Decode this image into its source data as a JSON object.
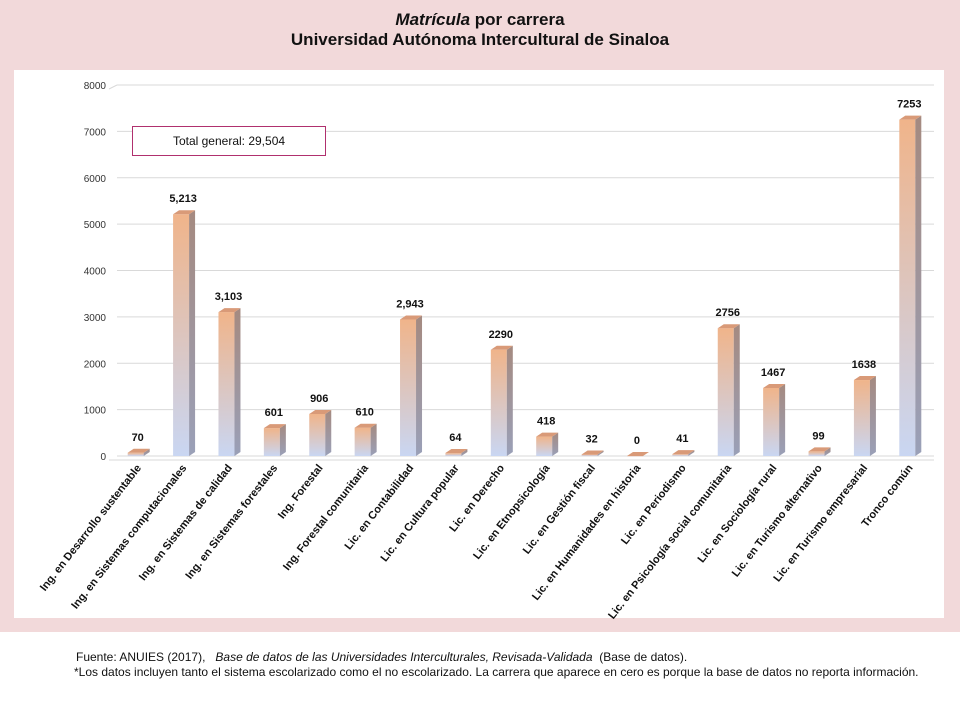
{
  "title": {
    "line1_italic": "Matrícula",
    "line1_rest": " por carrera",
    "line2": "Universidad Autónoma Intercultural de Sinaloa"
  },
  "total_label": "Total general: 29,504",
  "footer": {
    "source_prefix": "Fuente: ANUIES (2017),",
    "source_title": "Base de datos de las Universidades Interculturales, Revisada-Validada",
    "source_suffix": "(Base de datos).",
    "note": "*Los datos incluyen tanto el sistema escolarizado como el no escolarizado. La carrera que aparece en cero es porque la base de datos no reporta información."
  },
  "colors": {
    "frame": "#f2d9da",
    "bar_top_orange": "#f0b48a",
    "bar_bottom_blue": "#c9d6f2",
    "bar_side": "#9c9aa8",
    "grid": "#d9d9d9",
    "total_border": "#b0306e"
  },
  "chart_data": {
    "type": "bar",
    "title": "Matrícula por carrera — Universidad Autónoma Intercultural de Sinaloa",
    "xlabel": "",
    "ylabel": "",
    "ylim": [
      0,
      8000
    ],
    "yticks": [
      0,
      1000,
      2000,
      3000,
      4000,
      5000,
      6000,
      7000,
      8000
    ],
    "grid": true,
    "categories": [
      "Ing. en Desarrollo sustentable",
      "Ing. en Sistemas computacionales",
      "Ing. en Sistemas de calidad",
      "Ing. en Sistemas forestales",
      "Ing. Forestal",
      "Ing. Forestal comunitaria",
      "Lic. en Contabilidad",
      "Lic. en Cultura popular",
      "Lic. en Derecho",
      "Lic. en Etnopsicología",
      "Lic. en Gestión fiscal",
      "Lic. en Humanidades en historia",
      "Lic. en Periodismo",
      "Lic. en Psicología social comunitaria",
      "Lic. en Sociología rural",
      "Lic. en Turismo alternativo",
      "Lic. en Turismo empresarial",
      "Tronco común"
    ],
    "values": [
      70,
      5213,
      3103,
      601,
      906,
      610,
      2943,
      64,
      2290,
      418,
      32,
      0,
      41,
      2756,
      1467,
      99,
      1638,
      7253
    ],
    "data_labels": [
      "70",
      "5,213",
      "3,103",
      "601",
      "906",
      "610",
      "2,943",
      "64",
      "2290",
      "418",
      "32",
      "0",
      "41",
      "2756",
      "1467",
      "99",
      "1638",
      "7253"
    ]
  }
}
